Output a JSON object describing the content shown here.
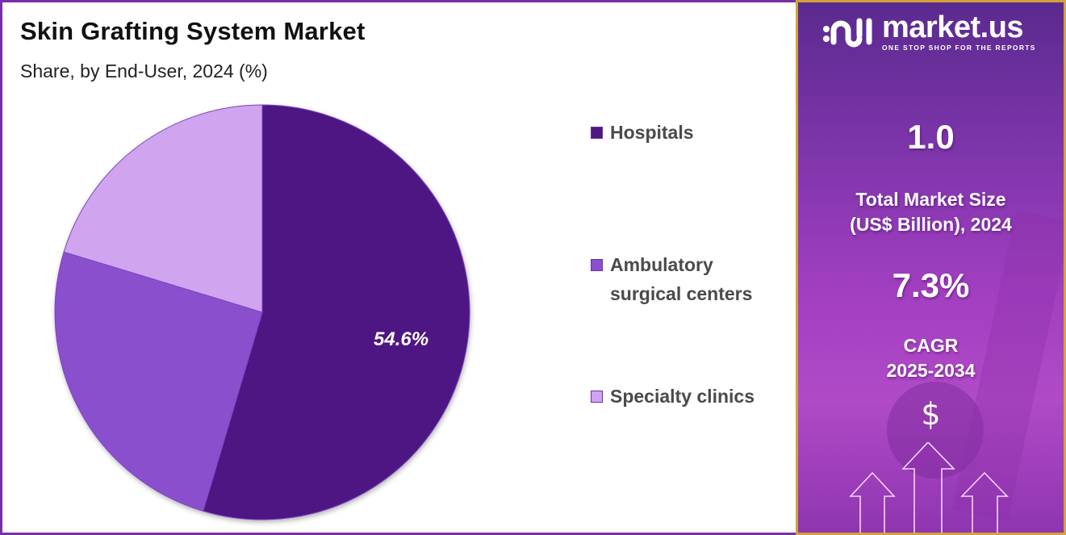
{
  "header": {
    "title": "Skin Grafting System Market",
    "subtitle": "Share, by End-User, 2024 (%)"
  },
  "chart_data": {
    "type": "pie",
    "title": "Skin Grafting System Market",
    "subtitle": "Share, by End-User, 2024 (%)",
    "categories": [
      "Hospitals",
      "Ambulatory surgical centers",
      "Specialty clinics"
    ],
    "values": [
      54.6,
      25.1,
      20.3
    ],
    "colors": [
      "#4e1883",
      "#8a50cc",
      "#d0a4ee"
    ],
    "data_labels": [
      "54.6%",
      "",
      ""
    ],
    "start_angle": "12 o'clock, clockwise",
    "legend_position": "right"
  },
  "legend": {
    "items": [
      {
        "label": "Hospitals",
        "color": "#4e1883"
      },
      {
        "label_line1": "Ambulatory",
        "label_line2": "surgical centers",
        "color": "#8a50cc"
      },
      {
        "label": "Specialty clinics",
        "color": "#d0a4ee"
      }
    ]
  },
  "pie_label": "54.6%",
  "sidebar": {
    "brand": {
      "name": "market.us",
      "tagline": "ONE STOP SHOP FOR THE REPORTS"
    },
    "market_size": {
      "value": "1.0",
      "label_line1": "Total Market Size",
      "label_line2": "(US$ Billion), 2024"
    },
    "cagr": {
      "value": "7.3%",
      "label_line1": "CAGR",
      "label_line2": "2025-2034"
    },
    "icons": {
      "currency": "$"
    }
  }
}
